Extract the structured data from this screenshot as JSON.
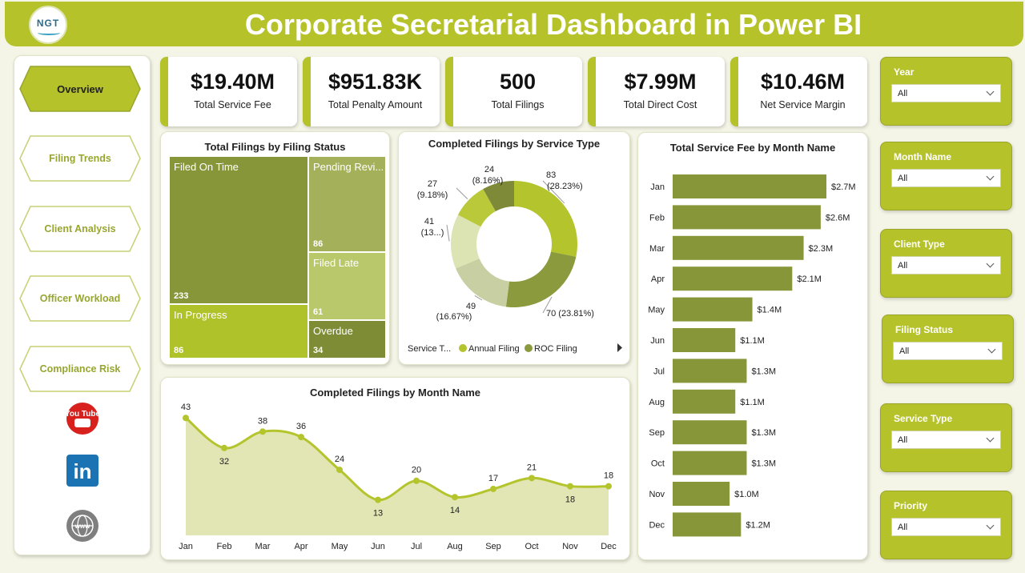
{
  "header": {
    "title": "Corporate Secretarial Dashboard in Power BI",
    "logo_text": "NGT"
  },
  "nav": {
    "items": [
      {
        "label": "Overview",
        "active": true
      },
      {
        "label": "Filing Trends",
        "active": false
      },
      {
        "label": "Client Analysis",
        "active": false
      },
      {
        "label": "Officer Workload",
        "active": false
      },
      {
        "label": "Compliance Risk",
        "active": false
      }
    ],
    "social": [
      {
        "icon": "youtube-icon",
        "text": "You Tube",
        "color": "#d8201d"
      },
      {
        "icon": "linkedin-icon",
        "text": "in",
        "color": "#1c73b4"
      },
      {
        "icon": "website-icon",
        "text": "www",
        "color": "#7f7f7f"
      }
    ]
  },
  "kpis": [
    {
      "value": "$19.40M",
      "label": "Total Service Fee"
    },
    {
      "value": "$951.83K",
      "label": "Total Penalty Amount"
    },
    {
      "value": "500",
      "label": "Total Filings"
    },
    {
      "value": "$7.99M",
      "label": "Total Direct Cost"
    },
    {
      "value": "$10.46M",
      "label": "Net Service Margin"
    }
  ],
  "treemap": {
    "title": "Total Filings by Filing Status",
    "items": [
      {
        "name": "Filed On Time",
        "count": "233",
        "color": "#879639"
      },
      {
        "name": "Pending Revi...",
        "count": "86",
        "color": "#a5b05a"
      },
      {
        "name": "Filed Late",
        "count": "61",
        "color": "#b9c86a"
      },
      {
        "name": "In Progress",
        "count": "86",
        "color": "#afc22a"
      },
      {
        "name": "Overdue",
        "count": "34",
        "color": "#7f8c36"
      }
    ]
  },
  "donut": {
    "title": "Completed Filings by Service Type",
    "legend_title": "Service T...",
    "legend": [
      {
        "name": "Annual Filing",
        "color": "#b4c42c"
      },
      {
        "name": "ROC Filing",
        "color": "#8a9a3c"
      }
    ],
    "slices": [
      {
        "value": 83,
        "label1": "83",
        "label2": "(28.23%)",
        "color": "#b4c42c"
      },
      {
        "value": 70,
        "label1": "70 (23.81%)",
        "label2": "",
        "color": "#8a9a3c"
      },
      {
        "value": 49,
        "label1": "49",
        "label2": "(16.67%)",
        "color": "#c8cfa2"
      },
      {
        "value": 41,
        "label1": "41",
        "label2": "(13...)",
        "color": "#dce4b4"
      },
      {
        "value": 27,
        "label1": "27",
        "label2": "(9.18%)",
        "color": "#b9c93a"
      },
      {
        "value": 24,
        "label1": "24",
        "label2": "(8.16%)",
        "color": "#7f8a38"
      }
    ]
  },
  "chart_data": [
    {
      "type": "bar",
      "title": "Total Service Fee by Month Name",
      "orientation": "horizontal",
      "categories": [
        "Jan",
        "Feb",
        "Mar",
        "Apr",
        "May",
        "Jun",
        "Jul",
        "Aug",
        "Sep",
        "Oct",
        "Nov",
        "Dec"
      ],
      "values": [
        2.7,
        2.6,
        2.3,
        2.1,
        1.4,
        1.1,
        1.3,
        1.1,
        1.3,
        1.3,
        1.0,
        1.2
      ],
      "value_labels": [
        "$2.7M",
        "$2.6M",
        "$2.3M",
        "$2.1M",
        "$1.4M",
        "$1.1M",
        "$1.3M",
        "$1.1M",
        "$1.3M",
        "$1.3M",
        "$1.0M",
        "$1.2M"
      ],
      "xlim": [
        0,
        2.7
      ],
      "color": "#879639"
    },
    {
      "type": "area",
      "title": "Completed Filings by Month Name",
      "x": [
        "Jan",
        "Feb",
        "Mar",
        "Apr",
        "May",
        "Jun",
        "Jul",
        "Aug",
        "Sep",
        "Oct",
        "Nov",
        "Dec"
      ],
      "values": [
        43,
        32,
        38,
        36,
        24,
        13,
        20,
        14,
        17,
        21,
        18,
        18
      ],
      "ylim": [
        0,
        46
      ],
      "line_color": "#b4c42c",
      "fill_color": "#e1e6b4"
    }
  ],
  "filters": [
    {
      "label": "Year",
      "value": "All"
    },
    {
      "label": "Month Name",
      "value": "All"
    },
    {
      "label": "Client Type",
      "value": "All"
    },
    {
      "label": "Filing Status",
      "value": "All"
    },
    {
      "label": "Service Type",
      "value": "All"
    },
    {
      "label": "Priority",
      "value": "All"
    }
  ]
}
